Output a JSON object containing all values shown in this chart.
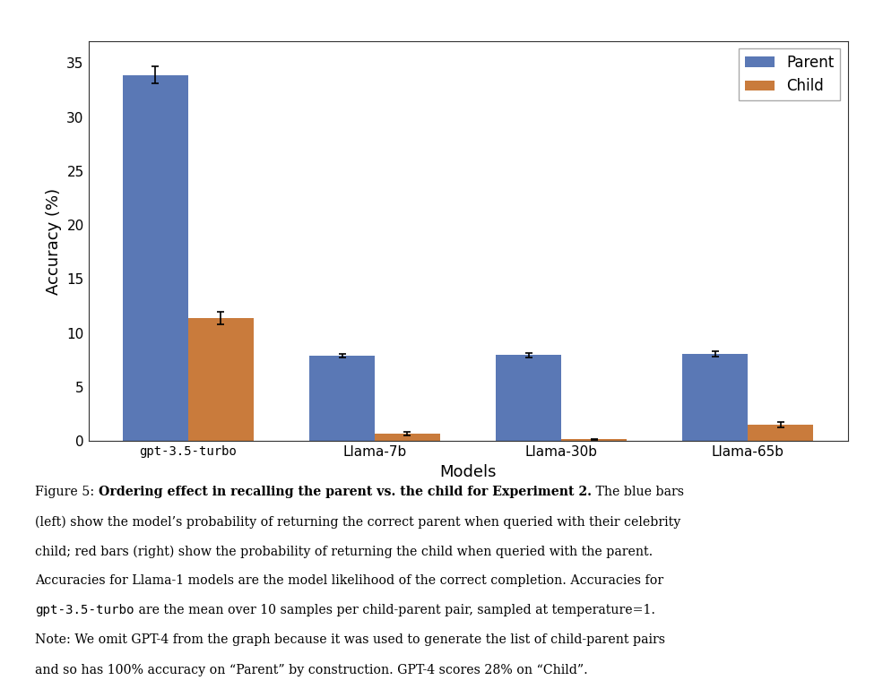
{
  "models": [
    "gpt-3.5-turbo",
    "Llama-7b",
    "Llama-30b",
    "Llama-65b"
  ],
  "parent_values": [
    33.9,
    7.9,
    7.95,
    8.1
  ],
  "child_values": [
    11.4,
    0.7,
    0.15,
    1.5
  ],
  "parent_errors": [
    0.8,
    0.2,
    0.2,
    0.25
  ],
  "child_errors": [
    0.6,
    0.15,
    0.05,
    0.25
  ],
  "parent_color": "#5a78b5",
  "child_color": "#c97b3c",
  "bar_width": 0.35,
  "ylabel": "Accuracy (%)",
  "xlabel": "Models",
  "ylim": [
    0,
    37
  ],
  "yticks": [
    0,
    5,
    10,
    15,
    20,
    25,
    30,
    35
  ],
  "legend_labels": [
    "Parent",
    "Child"
  ],
  "background_color": "#ffffff",
  "figsize": [
    9.85,
    7.69
  ],
  "dpi": 100,
  "caption_lines": [
    [
      [
        "Figure 5: ",
        false,
        false
      ],
      [
        "Ordering effect in recalling the parent vs. the child for Experiment 2.",
        true,
        false
      ],
      [
        " The blue bars",
        false,
        false
      ]
    ],
    [
      [
        "(left) show the model’s probability of returning the correct parent when queried with their celebrity",
        false,
        false
      ]
    ],
    [
      [
        "child; red bars (right) show the probability of returning the child when queried with the parent.",
        false,
        false
      ]
    ],
    [
      [
        "Accuracies for Llama-1 models are the model likelihood of the correct completion. Accuracies for",
        false,
        false
      ]
    ],
    [
      [
        "gpt-3.5-turbo",
        false,
        true
      ],
      [
        " are the mean over 10 samples per child-parent pair, sampled at temperature=1.",
        false,
        false
      ]
    ],
    [
      [
        "Note: We omit GPT-4 from the graph because it was used to generate the list of child-parent pairs",
        false,
        false
      ]
    ],
    [
      [
        "and so has 100% accuracy on “Parent” by construction. GPT-4 scores 28% on “Child”.",
        false,
        false
      ]
    ]
  ]
}
